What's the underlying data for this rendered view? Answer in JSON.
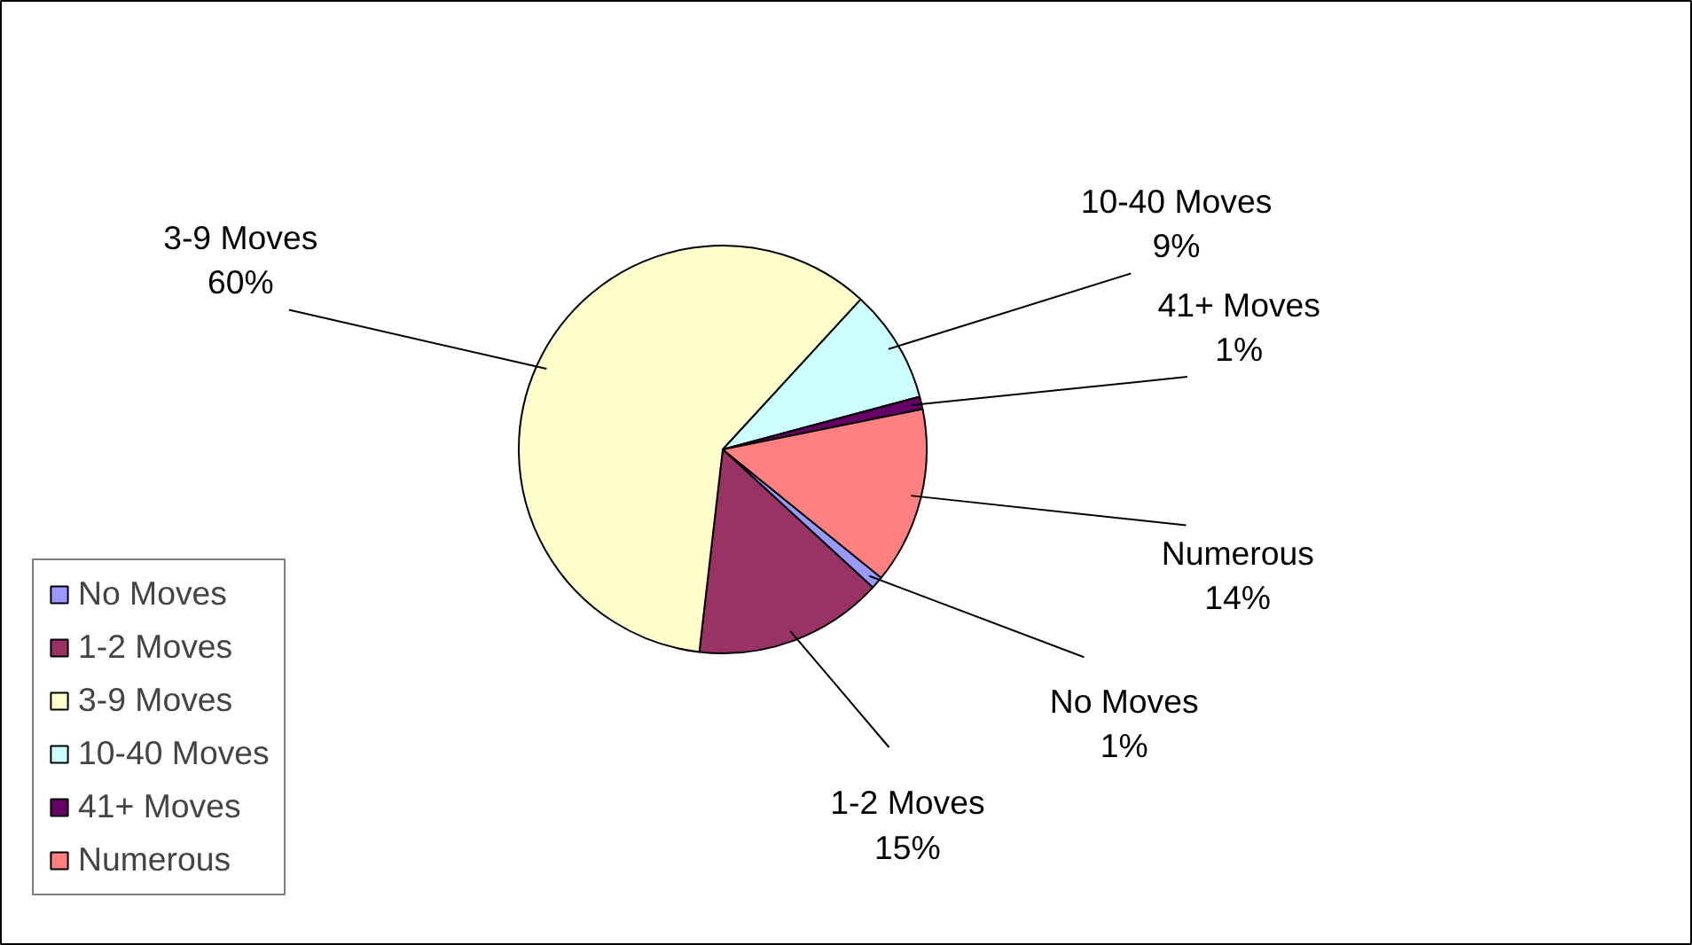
{
  "chart_data": {
    "type": "pie",
    "categories": [
      "No Moves",
      "1-2 Moves",
      "3-9 Moves",
      "10-40 Moves",
      "41+ Moves",
      "Numerous"
    ],
    "values": [
      1,
      15,
      60,
      9,
      1,
      14
    ],
    "colors": [
      "#9999ff",
      "#993366",
      "#ffffcc",
      "#ccffff",
      "#660066",
      "#ff8080"
    ],
    "value_labels": [
      "1%",
      "15%",
      "60%",
      "9%",
      "1%",
      "14%"
    ],
    "legend": "left"
  }
}
